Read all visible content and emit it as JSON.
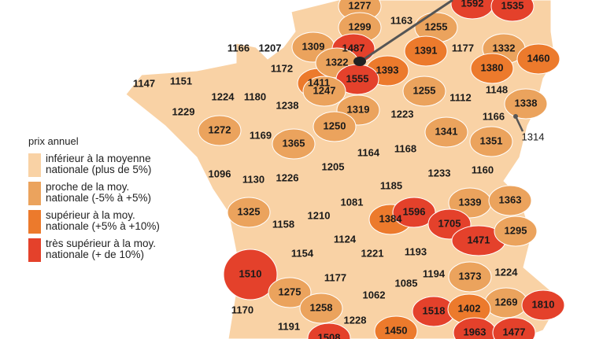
{
  "legend": {
    "title": "prix annuel",
    "items": [
      {
        "label_1": "inférieur à la moyenne",
        "label_2": "nationale (plus de 5%)",
        "color": "#f9d2a5"
      },
      {
        "label_1": "proche de la moy.",
        "label_2": "nationale (-5% à +5%)",
        "color": "#eba35d"
      },
      {
        "label_1": "supérieur à la moy.",
        "label_2": "nationale (+5% à +10%)",
        "color": "#ec7a2c"
      },
      {
        "label_1": "très supérieur à la moy.",
        "label_2": "nationale (+ de 10%)",
        "color": "#e4412b"
      }
    ]
  },
  "departments": [
    {
      "value": "1411",
      "cat": 2
    },
    {
      "value": "1277",
      "cat": 1
    },
    {
      "value": "1299",
      "cat": 1
    },
    {
      "value": "1163",
      "cat": 0
    },
    {
      "value": "1255",
      "cat": 1
    },
    {
      "value": "1592",
      "cat": 3
    },
    {
      "value": "1535",
      "cat": 3
    },
    {
      "value": "1166",
      "cat": 0
    },
    {
      "value": "1207",
      "cat": 0
    },
    {
      "value": "1309",
      "cat": 1
    },
    {
      "value": "1487",
      "cat": 3
    },
    {
      "value": "1322",
      "cat": 1
    },
    {
      "value": "1172",
      "cat": 0
    },
    {
      "value": "1391",
      "cat": 2
    },
    {
      "value": "1177",
      "cat": 0
    },
    {
      "value": "1332",
      "cat": 1
    },
    {
      "value": "1460",
      "cat": 2
    },
    {
      "value": "1380",
      "cat": 2
    },
    {
      "value": "1393",
      "cat": 2
    },
    {
      "value": "1555",
      "cat": 3
    },
    {
      "value": "1247",
      "cat": 1
    },
    {
      "value": "1147",
      "cat": 0
    },
    {
      "value": "1151",
      "cat": 0
    },
    {
      "value": "1224",
      "cat": 0
    },
    {
      "value": "1180",
      "cat": 0
    },
    {
      "value": "1238",
      "cat": 0
    },
    {
      "value": "1255",
      "cat": 1
    },
    {
      "value": "1112",
      "cat": 0
    },
    {
      "value": "1148",
      "cat": 0
    },
    {
      "value": "1338",
      "cat": 1
    },
    {
      "value": "1229",
      "cat": 0
    },
    {
      "value": "1319",
      "cat": 1
    },
    {
      "value": "1223",
      "cat": 0
    },
    {
      "value": "1166",
      "cat": 0
    },
    {
      "value": "1314",
      "cat": 1
    },
    {
      "value": "1272",
      "cat": 1
    },
    {
      "value": "1250",
      "cat": 1
    },
    {
      "value": "1169",
      "cat": 0
    },
    {
      "value": "1341",
      "cat": 1
    },
    {
      "value": "1351",
      "cat": 1
    },
    {
      "value": "1365",
      "cat": 1
    },
    {
      "value": "1164",
      "cat": 0
    },
    {
      "value": "1168",
      "cat": 0
    },
    {
      "value": "1096",
      "cat": 0
    },
    {
      "value": "1130",
      "cat": 0
    },
    {
      "value": "1226",
      "cat": 0
    },
    {
      "value": "1205",
      "cat": 0
    },
    {
      "value": "1233",
      "cat": 0
    },
    {
      "value": "1160",
      "cat": 0
    },
    {
      "value": "1185",
      "cat": 0
    },
    {
      "value": "1339",
      "cat": 1
    },
    {
      "value": "1363",
      "cat": 1
    },
    {
      "value": "1081",
      "cat": 0
    },
    {
      "value": "1210",
      "cat": 0
    },
    {
      "value": "1325",
      "cat": 1
    },
    {
      "value": "1158",
      "cat": 0
    },
    {
      "value": "1384",
      "cat": 2
    },
    {
      "value": "1596",
      "cat": 3
    },
    {
      "value": "1705",
      "cat": 3
    },
    {
      "value": "1471",
      "cat": 3
    },
    {
      "value": "1295",
      "cat": 1
    },
    {
      "value": "1124",
      "cat": 0
    },
    {
      "value": "1221",
      "cat": 0
    },
    {
      "value": "1193",
      "cat": 0
    },
    {
      "value": "1154",
      "cat": 0
    },
    {
      "value": "1510",
      "cat": 3
    },
    {
      "value": "1194",
      "cat": 0
    },
    {
      "value": "1373",
      "cat": 1
    },
    {
      "value": "1224",
      "cat": 0
    },
    {
      "value": "1085",
      "cat": 0
    },
    {
      "value": "1177",
      "cat": 0
    },
    {
      "value": "1062",
      "cat": 0
    },
    {
      "value": "1275",
      "cat": 1
    },
    {
      "value": "1170",
      "cat": 0
    },
    {
      "value": "1258",
      "cat": 1
    },
    {
      "value": "1269",
      "cat": 1
    },
    {
      "value": "1810",
      "cat": 3
    },
    {
      "value": "1518",
      "cat": 3
    },
    {
      "value": "1402",
      "cat": 2
    },
    {
      "value": "1191",
      "cat": 0
    },
    {
      "value": "1228",
      "cat": 0
    },
    {
      "value": "1450",
      "cat": 2
    },
    {
      "value": "1963",
      "cat": 3
    },
    {
      "value": "1477",
      "cat": 3
    },
    {
      "value": "1508",
      "cat": 3
    }
  ]
}
